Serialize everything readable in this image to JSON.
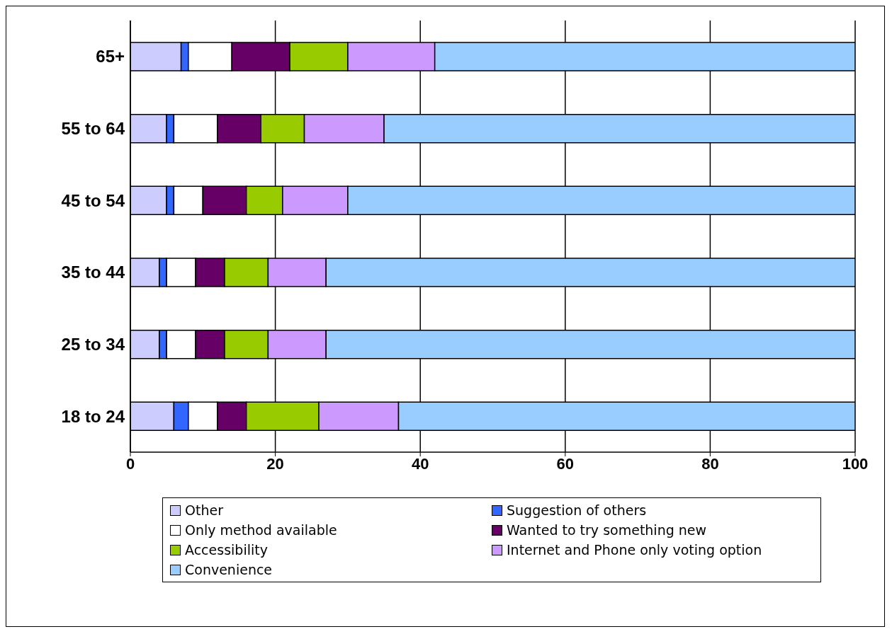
{
  "chart_data": {
    "type": "bar",
    "orientation": "horizontal",
    "stacked": true,
    "categories": [
      "65+",
      "55 to 64",
      "45 to 54",
      "35 to 44",
      "25 to 34",
      "18 to 24"
    ],
    "series": [
      {
        "name": "Other",
        "color": "#ccccff",
        "values": [
          7,
          5,
          5,
          4,
          4,
          6
        ]
      },
      {
        "name": "Suggestion of others",
        "color": "#3366ff",
        "values": [
          1,
          1,
          1,
          1,
          1,
          2
        ]
      },
      {
        "name": "Only method available",
        "color": "#ffffff",
        "values": [
          6,
          6,
          4,
          4,
          4,
          4
        ]
      },
      {
        "name": "Wanted to try something new",
        "color": "#660066",
        "values": [
          8,
          6,
          6,
          4,
          4,
          4
        ]
      },
      {
        "name": "Accessibility",
        "color": "#99cc00",
        "values": [
          8,
          6,
          5,
          6,
          6,
          10
        ]
      },
      {
        "name": "Internet and Phone only voting option",
        "color": "#cc99ff",
        "values": [
          12,
          11,
          9,
          8,
          8,
          11
        ]
      },
      {
        "name": "Convenience",
        "color": "#99ccff",
        "values": [
          58,
          65,
          70,
          73,
          73,
          63
        ]
      }
    ],
    "xlim": [
      0,
      100
    ],
    "xticks": [
      0,
      20,
      40,
      60,
      80,
      100
    ],
    "grid": "x",
    "legend": "bottom"
  }
}
